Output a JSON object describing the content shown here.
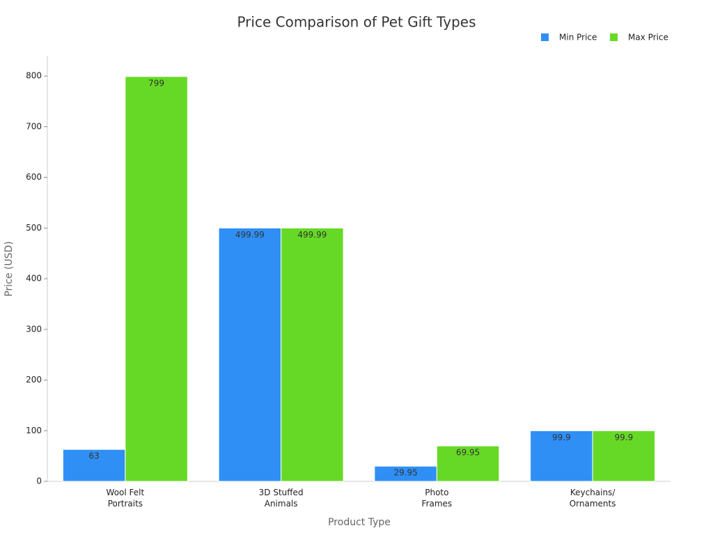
{
  "chart_data": {
    "type": "bar",
    "title": "Price Comparison of Pet Gift Types",
    "x_label": "Product Type",
    "y_label": "Price (USD)",
    "categories": [
      "Wool Felt\nPortraits",
      "3D Stuffed\nAnimals",
      "Photo\nFrames",
      "Keychains/\nOrnaments"
    ],
    "series": [
      {
        "name": "Min Price",
        "color": "#2f8ff5",
        "values": [
          63,
          499.99,
          29.95,
          99.9
        ]
      },
      {
        "name": "Max Price",
        "color": "#66d926",
        "values": [
          799,
          499.99,
          69.95,
          99.9
        ]
      }
    ],
    "ylim": [
      0,
      840
    ],
    "yticks": [
      0,
      100,
      200,
      300,
      400,
      500,
      600,
      700,
      800
    ],
    "legend": "top-right"
  }
}
